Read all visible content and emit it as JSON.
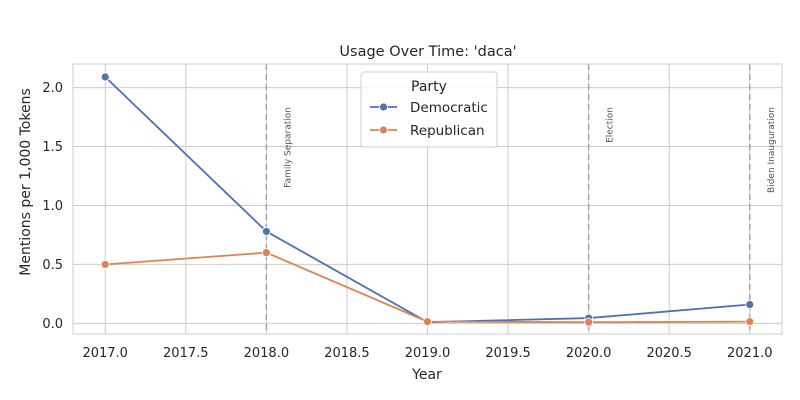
{
  "chart_data": {
    "type": "line",
    "title": "Usage Over Time: 'daca'",
    "xlabel": "Year",
    "ylabel": "Mentions per 1,000 Tokens",
    "xlim": [
      2016.8,
      2021.2
    ],
    "ylim": [
      -0.09,
      2.2
    ],
    "xticks": [
      2017.0,
      2017.5,
      2018.0,
      2018.5,
      2019.0,
      2019.5,
      2020.0,
      2020.5,
      2021.0
    ],
    "xtick_labels": [
      "2017.0",
      "2017.5",
      "2018.0",
      "2018.5",
      "2019.0",
      "2019.5",
      "2020.0",
      "2020.5",
      "2021.0"
    ],
    "yticks": [
      0.0,
      0.5,
      1.0,
      1.5,
      2.0
    ],
    "ytick_labels": [
      "0.0",
      "0.5",
      "1.0",
      "1.5",
      "2.0"
    ],
    "grid": true,
    "legend": {
      "title": "Party",
      "placement": "top-center"
    },
    "x": [
      2017,
      2018,
      2019,
      2020,
      2021
    ],
    "series": [
      {
        "name": "Democratic",
        "color": "#4c72b0",
        "values": [
          2.09,
          0.78,
          0.01,
          0.045,
          0.16
        ]
      },
      {
        "name": "Republican",
        "color": "#dd8452",
        "values": [
          0.5,
          0.6,
          0.015,
          0.01,
          0.015
        ]
      }
    ],
    "annotations": [
      {
        "x": 2018,
        "label": "Family Separation"
      },
      {
        "x": 2020,
        "label": "Election"
      },
      {
        "x": 2021,
        "label": "Biden Inauguration"
      }
    ]
  }
}
